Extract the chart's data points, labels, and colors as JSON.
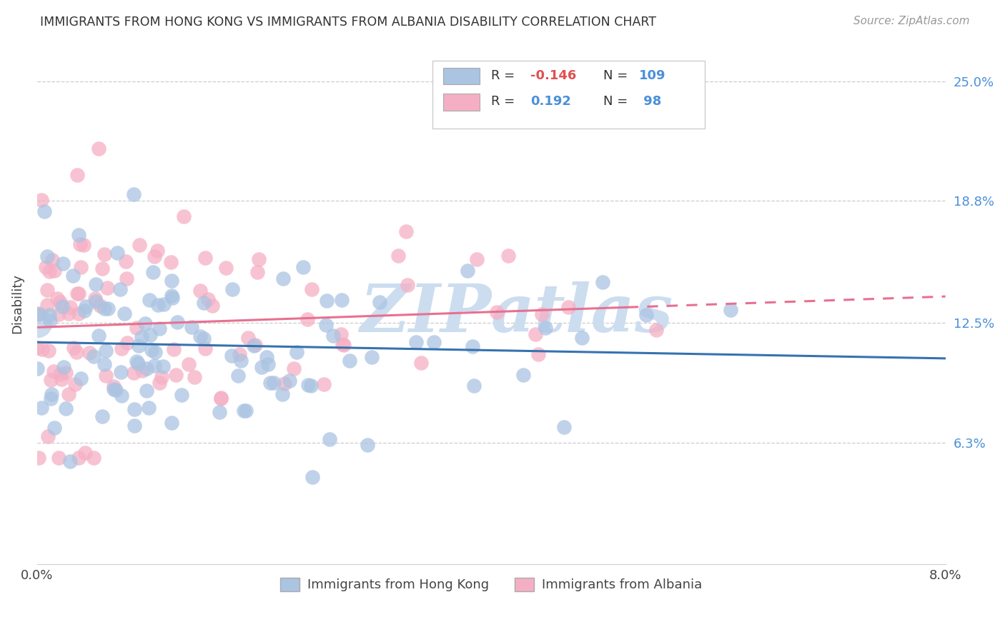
{
  "title": "IMMIGRANTS FROM HONG KONG VS IMMIGRANTS FROM ALBANIA DISABILITY CORRELATION CHART",
  "source": "Source: ZipAtlas.com",
  "ylabel": "Disability",
  "ytick_labels": [
    "25.0%",
    "18.8%",
    "12.5%",
    "6.3%"
  ],
  "ytick_values": [
    0.25,
    0.188,
    0.125,
    0.063
  ],
  "xlim": [
    0.0,
    0.08
  ],
  "ylim": [
    0.0,
    0.27
  ],
  "hk_color": "#aac4e2",
  "albania_color": "#f5afc4",
  "hk_line_color": "#3672b0",
  "albania_line_color": "#e87090",
  "watermark_color": "#ccddf0",
  "R_hk": -0.146,
  "N_hk": 109,
  "R_albania": 0.192,
  "N_albania": 98
}
